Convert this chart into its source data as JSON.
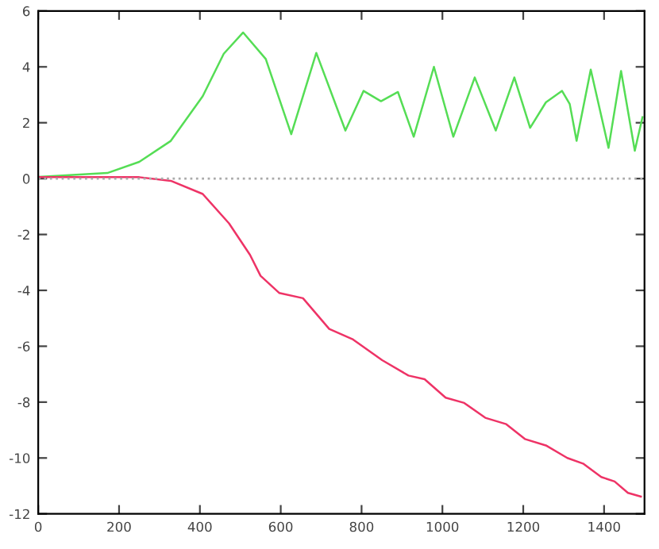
{
  "chart_data": {
    "type": "line",
    "xlim": [
      0,
      1500
    ],
    "ylim": [
      -12,
      6
    ],
    "xticks": [
      0,
      200,
      400,
      600,
      800,
      1000,
      1200,
      1400
    ],
    "yticks": [
      -12,
      -10,
      -8,
      -6,
      -4,
      -2,
      0,
      2,
      4,
      6
    ],
    "grid": false,
    "marker": "none",
    "line_style": "solid",
    "ref_lines": [
      {
        "axis": "y",
        "value": 0,
        "color": "#aaaaaa",
        "line_style": "dotted"
      }
    ],
    "series": [
      {
        "color": "#55dd55",
        "x": [
          0,
          171,
          250,
          328,
          407,
          459,
          507,
          563,
          626,
          688,
          760,
          805,
          848,
          890,
          929,
          979,
          1027,
          1080,
          1132,
          1178,
          1217,
          1256,
          1296,
          1315,
          1332,
          1367,
          1411,
          1442,
          1476,
          1495
        ],
        "values": [
          0.06,
          0.2,
          0.6,
          1.35,
          2.95,
          4.47,
          5.23,
          4.28,
          1.59,
          4.5,
          1.72,
          3.14,
          2.77,
          3.1,
          1.5,
          4.0,
          1.5,
          3.62,
          1.72,
          3.62,
          1.82,
          2.73,
          3.14,
          2.67,
          1.35,
          3.9,
          1.1,
          3.85,
          1.0,
          2.2
        ]
      },
      {
        "color": "#ee3366",
        "x": [
          0,
          250,
          328,
          407,
          472,
          524,
          550,
          596,
          655,
          720,
          779,
          851,
          916,
          956,
          1008,
          1054,
          1106,
          1158,
          1204,
          1256,
          1309,
          1348,
          1393,
          1426,
          1459,
          1491
        ],
        "values": [
          0.05,
          0.05,
          -0.08,
          -0.55,
          -1.6,
          -2.73,
          -3.48,
          -4.09,
          -4.28,
          -5.38,
          -5.76,
          -6.5,
          -7.05,
          -7.18,
          -7.84,
          -8.03,
          -8.56,
          -8.79,
          -9.32,
          -9.55,
          -10.0,
          -10.2,
          -10.68,
          -10.84,
          -11.25,
          -11.38
        ]
      }
    ]
  }
}
